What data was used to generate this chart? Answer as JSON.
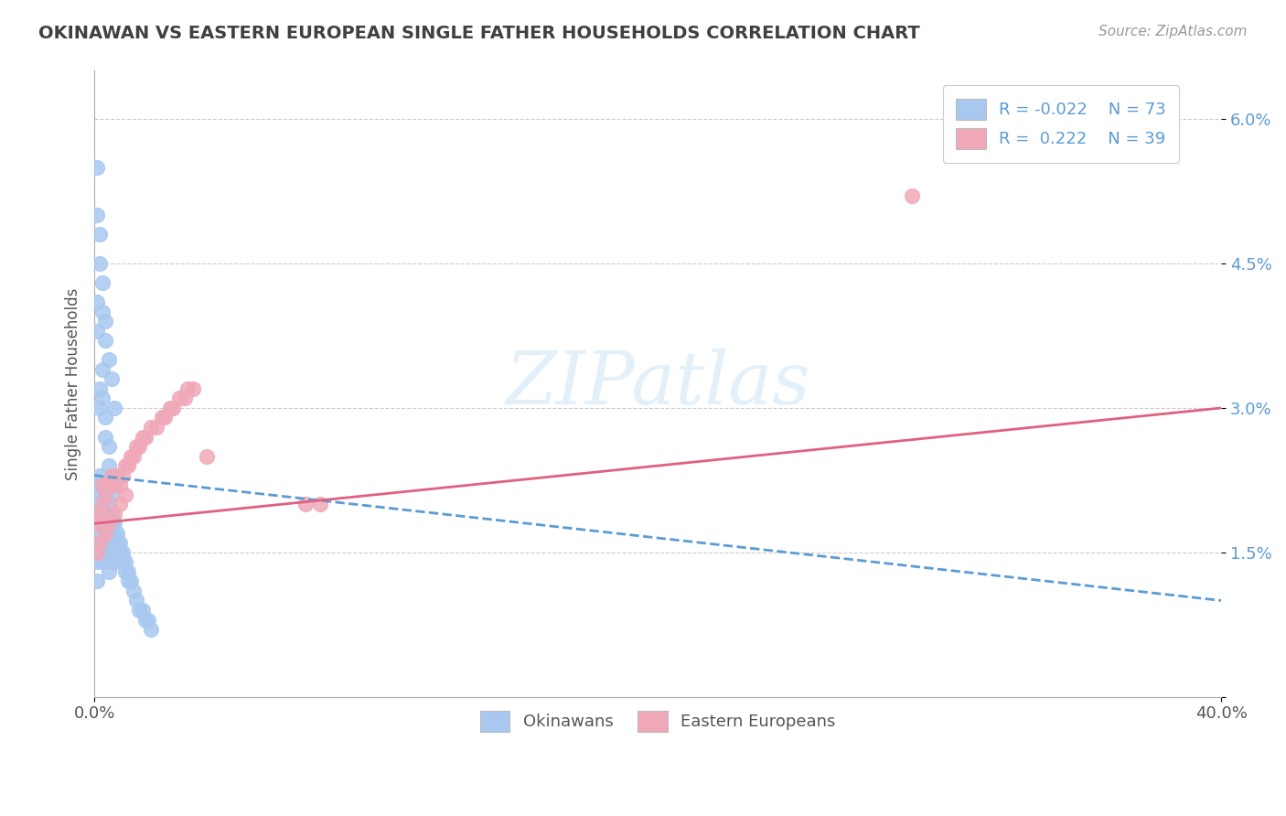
{
  "title": "OKINAWAN VS EASTERN EUROPEAN SINGLE FATHER HOUSEHOLDS CORRELATION CHART",
  "source": "Source: ZipAtlas.com",
  "ylabel": "Single Father Households",
  "xlim": [
    0.0,
    0.4
  ],
  "ylim": [
    0.0,
    0.065
  ],
  "ytick_vals": [
    0.0,
    0.015,
    0.03,
    0.045,
    0.06
  ],
  "ytick_labels": [
    "",
    "1.5%",
    "3.0%",
    "4.5%",
    "6.0%"
  ],
  "xtick_vals": [
    0.0,
    0.4
  ],
  "xtick_labels": [
    "0.0%",
    "40.0%"
  ],
  "okinawan_color": "#a8c8f0",
  "eastern_color": "#f0a8b8",
  "okinawan_line_color": "#5b9bd5",
  "eastern_line_color": "#e06080",
  "okinawan_R": -0.022,
  "okinawan_N": 73,
  "eastern_R": 0.222,
  "eastern_N": 39,
  "watermark": "ZIPatlas",
  "legend_label_1": "Okinawans",
  "legend_label_2": "Eastern Europeans",
  "ok_x": [
    0.001,
    0.001,
    0.001,
    0.001,
    0.001,
    0.001,
    0.002,
    0.002,
    0.002,
    0.002,
    0.003,
    0.003,
    0.003,
    0.003,
    0.003,
    0.004,
    0.004,
    0.004,
    0.004,
    0.005,
    0.005,
    0.005,
    0.005,
    0.005,
    0.006,
    0.006,
    0.006,
    0.006,
    0.007,
    0.007,
    0.007,
    0.008,
    0.008,
    0.008,
    0.009,
    0.009,
    0.01,
    0.01,
    0.011,
    0.011,
    0.012,
    0.012,
    0.013,
    0.014,
    0.015,
    0.016,
    0.017,
    0.018,
    0.019,
    0.02,
    0.002,
    0.002,
    0.003,
    0.003,
    0.004,
    0.004,
    0.005,
    0.005,
    0.006,
    0.006,
    0.001,
    0.001,
    0.001,
    0.001,
    0.002,
    0.002,
    0.003,
    0.003,
    0.004,
    0.004,
    0.005,
    0.006,
    0.007
  ],
  "ok_y": [
    0.022,
    0.02,
    0.018,
    0.016,
    0.014,
    0.012,
    0.023,
    0.021,
    0.019,
    0.017,
    0.022,
    0.02,
    0.018,
    0.016,
    0.014,
    0.021,
    0.019,
    0.017,
    0.015,
    0.02,
    0.018,
    0.017,
    0.015,
    0.013,
    0.019,
    0.018,
    0.016,
    0.014,
    0.018,
    0.017,
    0.015,
    0.017,
    0.016,
    0.014,
    0.016,
    0.015,
    0.015,
    0.014,
    0.014,
    0.013,
    0.013,
    0.012,
    0.012,
    0.011,
    0.01,
    0.009,
    0.009,
    0.008,
    0.008,
    0.007,
    0.032,
    0.03,
    0.034,
    0.031,
    0.029,
    0.027,
    0.026,
    0.024,
    0.023,
    0.021,
    0.038,
    0.041,
    0.05,
    0.055,
    0.045,
    0.048,
    0.04,
    0.043,
    0.037,
    0.039,
    0.035,
    0.033,
    0.03
  ],
  "ee_x": [
    0.001,
    0.002,
    0.003,
    0.003,
    0.004,
    0.005,
    0.006,
    0.007,
    0.008,
    0.009,
    0.01,
    0.011,
    0.012,
    0.013,
    0.014,
    0.015,
    0.016,
    0.017,
    0.018,
    0.02,
    0.022,
    0.024,
    0.025,
    0.027,
    0.028,
    0.03,
    0.032,
    0.033,
    0.035,
    0.08,
    0.001,
    0.002,
    0.004,
    0.005,
    0.007,
    0.009,
    0.011,
    0.04,
    0.29
  ],
  "ee_y": [
    0.018,
    0.019,
    0.02,
    0.022,
    0.021,
    0.022,
    0.023,
    0.022,
    0.023,
    0.022,
    0.023,
    0.024,
    0.024,
    0.025,
    0.025,
    0.026,
    0.026,
    0.027,
    0.027,
    0.028,
    0.028,
    0.029,
    0.029,
    0.03,
    0.03,
    0.031,
    0.031,
    0.032,
    0.032,
    0.02,
    0.015,
    0.016,
    0.017,
    0.018,
    0.019,
    0.02,
    0.021,
    0.025,
    0.052
  ],
  "ee_outlier_x": [
    0.075
  ],
  "ee_outlier_y": [
    0.02
  ],
  "trend_ok_x0": 0.0,
  "trend_ok_x1": 0.4,
  "trend_ok_y0": 0.023,
  "trend_ok_y1": 0.01,
  "trend_ee_x0": 0.0,
  "trend_ee_x1": 0.4,
  "trend_ee_y0": 0.018,
  "trend_ee_y1": 0.03
}
